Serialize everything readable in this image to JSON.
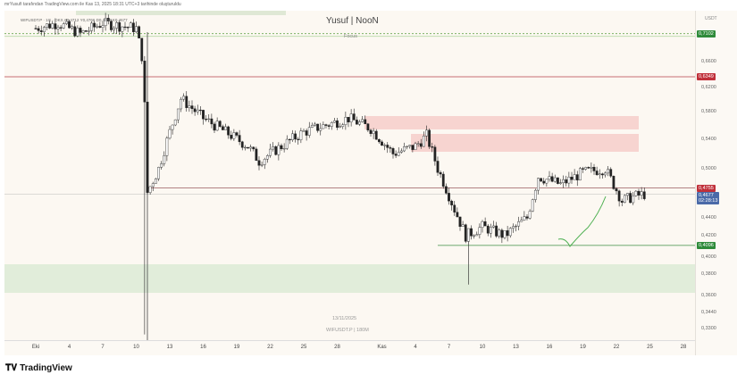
{
  "attribution": "mrYusufi tarafından TradingView.com ile Kas 13, 2025 18:31 UTC+3 tarihinde oluşturuldu",
  "legend_text": "WIFUSDT.P · 1G · OKX  A0,4712  Y0,4766  D0,4608  K0,4677",
  "header": {
    "title": "Yusuf | NooN",
    "subtitle": "Focus"
  },
  "watermark": {
    "date": "13/11/2025",
    "symbol": "WIFUSDT.P | 180M"
  },
  "price_axis": {
    "currency": "USDT",
    "labels": [
      "0,6600",
      "0,6200",
      "0,5800",
      "0,5400",
      "0,5000",
      "0,4400",
      "0,4200",
      "0,4000",
      "0,3800",
      "0,3600",
      "0,3440",
      "0,3300"
    ],
    "badges": [
      {
        "value": "0,7102",
        "color": "#2e8b3a",
        "price": 0.7102
      },
      {
        "value": "0,6349",
        "color": "#c0303a",
        "price": 0.6349
      },
      {
        "value": "0,4755",
        "color": "#c0303a",
        "price": 0.4755
      },
      {
        "value": "0,4677",
        "extra": "02:28:13",
        "color": "#4a6aa8",
        "price": 0.4677
      },
      {
        "value": "0,4096",
        "color": "#2e8b3a",
        "price": 0.4096
      }
    ]
  },
  "time_axis": {
    "labels": [
      "Eki",
      "4",
      "7",
      "10",
      "13",
      "16",
      "19",
      "22",
      "25",
      "28",
      "Kas",
      "4",
      "7",
      "10",
      "13",
      "16",
      "19",
      "22",
      "25",
      "28"
    ]
  },
  "logo": "TradingView",
  "chart_data": {
    "type": "candlestick",
    "symbol": "WIFUSDT.P",
    "waypoints": [
      [
        0,
        0.72
      ],
      [
        2,
        0.73
      ],
      [
        4,
        0.71
      ],
      [
        6,
        0.73
      ],
      [
        9,
        0.72
      ],
      [
        9.6,
        0.66
      ],
      [
        10,
        0.47
      ],
      [
        11,
        0.5
      ],
      [
        13,
        0.6
      ],
      [
        15,
        0.57
      ],
      [
        17,
        0.55
      ],
      [
        19,
        0.53
      ],
      [
        20,
        0.51
      ],
      [
        22,
        0.53
      ],
      [
        24,
        0.55
      ],
      [
        26,
        0.56
      ],
      [
        28,
        0.57
      ],
      [
        30,
        0.555
      ],
      [
        32,
        0.52
      ],
      [
        34,
        0.53
      ],
      [
        35,
        0.545
      ],
      [
        36,
        0.5
      ],
      [
        37.5,
        0.45
      ],
      [
        38.5,
        0.42
      ],
      [
        40,
        0.43
      ],
      [
        42,
        0.42
      ],
      [
        44,
        0.44
      ],
      [
        45,
        0.49
      ],
      [
        47,
        0.48
      ],
      [
        49,
        0.495
      ],
      [
        51,
        0.5
      ],
      [
        52.5,
        0.46
      ],
      [
        53.5,
        0.465
      ],
      [
        54.5,
        0.468
      ]
    ],
    "colors": {
      "up": "#1a1a1a",
      "down": "#1a1a1a"
    }
  }
}
